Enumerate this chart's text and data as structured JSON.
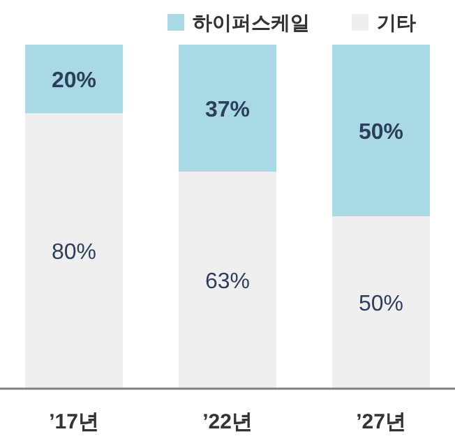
{
  "chart_data": {
    "type": "bar",
    "stacked": true,
    "categories": [
      "’17년",
      "’22년",
      "’27년"
    ],
    "series": [
      {
        "name": "기타",
        "color": "#efefef",
        "values": [
          80,
          63,
          50
        ],
        "value_labels": [
          "80%",
          "63%",
          "50%"
        ]
      },
      {
        "name": "하이퍼스케일",
        "color": "#a9d9e4",
        "values": [
          20,
          37,
          50
        ],
        "value_labels": [
          "20%",
          "37%",
          "50%"
        ]
      }
    ],
    "legend": "top right"
  }
}
